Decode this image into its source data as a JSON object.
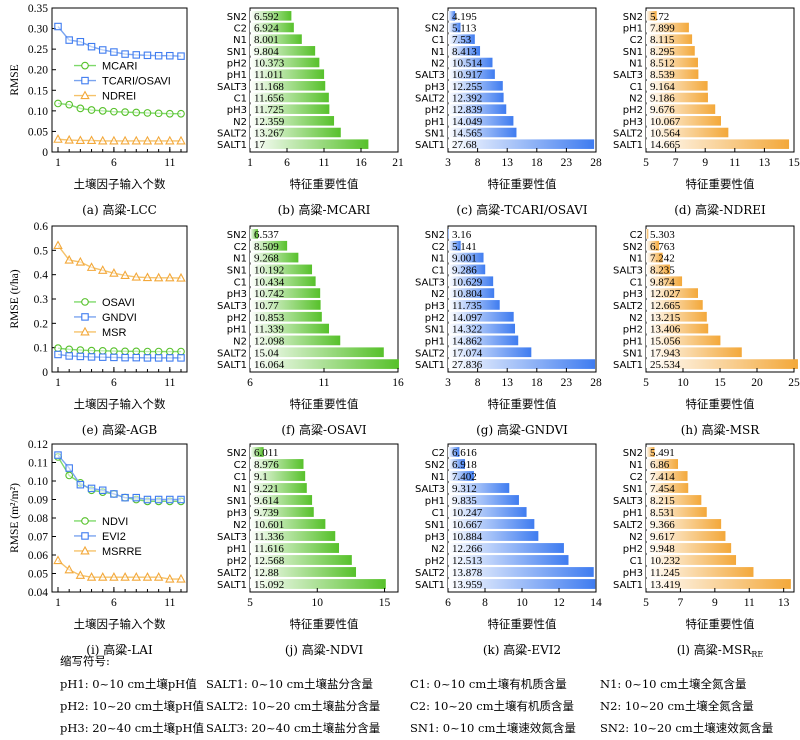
{
  "colors": {
    "green": "#57c12b",
    "blue": "#3f7cf0",
    "orange": "#f3a83a",
    "line_green": "#7ed96a",
    "line_blue": "#7aa4ef",
    "line_orange": "#f5c26a"
  },
  "chart_data": [
    {
      "id": "a",
      "type": "line",
      "caption": "(a) 高粱-LCC",
      "xlabel": "土壤因子输入个数",
      "ylabel": "RMSE",
      "ylim": [
        0,
        0.35
      ],
      "yticks": [
        0,
        0.05,
        0.1,
        0.15,
        0.2,
        0.25,
        0.3,
        0.35
      ],
      "ytick_labels": [
        "0",
        "0.05",
        "0.10",
        "0.15",
        "0.20",
        "0.25",
        "0.30",
        "0.35"
      ],
      "xlim": [
        1,
        12
      ],
      "xticks": [
        1,
        6,
        11
      ],
      "legend": [
        "MCARI",
        "TCARI/OSAVI",
        "NDREI"
      ],
      "legend_pos": "middle",
      "x": [
        1,
        2,
        3,
        4,
        5,
        6,
        7,
        8,
        9,
        10,
        11,
        12
      ],
      "series": [
        {
          "name": "MCARI",
          "color": "green",
          "marker": "circle",
          "values": [
            0.118,
            0.115,
            0.106,
            0.102,
            0.1,
            0.098,
            0.097,
            0.096,
            0.095,
            0.094,
            0.093,
            0.093
          ]
        },
        {
          "name": "TCARI/OSAVI",
          "color": "blue",
          "marker": "square",
          "values": [
            0.305,
            0.272,
            0.268,
            0.256,
            0.248,
            0.243,
            0.238,
            0.236,
            0.235,
            0.234,
            0.234,
            0.233
          ]
        },
        {
          "name": "NDREI",
          "color": "orange",
          "marker": "triangle",
          "values": [
            0.031,
            0.029,
            0.028,
            0.028,
            0.027,
            0.027,
            0.027,
            0.027,
            0.027,
            0.027,
            0.027,
            0.027
          ]
        }
      ]
    },
    {
      "id": "b",
      "type": "bar",
      "caption": "(b) 高粱-MCARI",
      "xlabel": "特征重要性值",
      "color": "green",
      "xlim": [
        1,
        21
      ],
      "xticks": [
        1,
        6,
        11,
        16,
        21
      ],
      "categories": [
        "SN2",
        "C2",
        "N1",
        "SN1",
        "pH2",
        "pH1",
        "SALT3",
        "C1",
        "pH3",
        "N2",
        "SALT2",
        "SALT1"
      ],
      "values": [
        6.592,
        6.924,
        8.001,
        9.804,
        10.373,
        11.011,
        11.168,
        11.656,
        11.725,
        12.359,
        13.267,
        17
      ],
      "value_labels": [
        "6.592",
        "6.924",
        "8.001",
        "9.804",
        "10.373",
        "11.011",
        "11.168",
        "11.656",
        "11.725",
        "12.359",
        "13.267",
        "17"
      ]
    },
    {
      "id": "c",
      "type": "bar",
      "caption": "(c) 高粱-TCARI/OSAVI",
      "xlabel": "特征重要性值",
      "color": "blue",
      "xlim": [
        3,
        28
      ],
      "xticks": [
        3,
        8,
        13,
        18,
        23,
        28
      ],
      "categories": [
        "C2",
        "SN2",
        "C1",
        "N1",
        "N2",
        "SALT3",
        "pH3",
        "SALT2",
        "pH2",
        "pH1",
        "SN1",
        "SALT1"
      ],
      "values": [
        4.195,
        5.113,
        7.53,
        8.413,
        10.514,
        10.917,
        12.255,
        12.392,
        12.839,
        14.049,
        14.565,
        27.68
      ],
      "value_labels": [
        "4.195",
        "5.113",
        "7.53",
        "8.413",
        "10.514",
        "10.917",
        "12.255",
        "12.392",
        "12.839",
        "14.049",
        "14.565",
        "27.68"
      ]
    },
    {
      "id": "d",
      "type": "bar",
      "caption": "(d) 高粱-NDREI",
      "xlabel": "特征重要性值",
      "color": "orange",
      "xlim": [
        5,
        15
      ],
      "xticks": [
        5,
        7,
        9,
        11,
        13,
        15
      ],
      "categories": [
        "SN2",
        "pH1",
        "C2",
        "SN1",
        "N1",
        "SALT3",
        "C1",
        "N2",
        "pH2",
        "pH3",
        "SALT2",
        "SALT1"
      ],
      "values": [
        5.72,
        7.899,
        8.115,
        8.295,
        8.512,
        8.539,
        9.164,
        9.186,
        9.676,
        10.067,
        10.564,
        14.665
      ],
      "value_labels": [
        "5.72",
        "7.899",
        "8.115",
        "8.295",
        "8.512",
        "8.539",
        "9.164",
        "9.186",
        "9.676",
        "10.067",
        "10.564",
        "14.665"
      ]
    },
    {
      "id": "e",
      "type": "line",
      "caption": "(e) 高粱-AGB",
      "xlabel": "土壤因子输入个数",
      "ylabel": "RMSE (t/ha)",
      "ylim": [
        0,
        0.6
      ],
      "yticks": [
        0,
        0.1,
        0.2,
        0.3,
        0.4,
        0.5,
        0.6
      ],
      "ytick_labels": [
        "0",
        "0.1",
        "0.2",
        "0.3",
        "0.4",
        "0.5",
        "0.6"
      ],
      "xlim": [
        1,
        12
      ],
      "xticks": [
        1,
        6,
        11
      ],
      "legend": [
        "OSAVI",
        "GNDVI",
        "MSR"
      ],
      "legend_pos": "lower-middle",
      "x": [
        1,
        2,
        3,
        4,
        5,
        6,
        7,
        8,
        9,
        10,
        11,
        12
      ],
      "series": [
        {
          "name": "OSAVI",
          "color": "green",
          "marker": "circle",
          "values": [
            0.098,
            0.093,
            0.09,
            0.088,
            0.087,
            0.086,
            0.085,
            0.085,
            0.084,
            0.084,
            0.084,
            0.084
          ]
        },
        {
          "name": "GNDVI",
          "color": "blue",
          "marker": "square",
          "values": [
            0.072,
            0.066,
            0.064,
            0.062,
            0.061,
            0.06,
            0.059,
            0.059,
            0.058,
            0.058,
            0.058,
            0.058
          ]
        },
        {
          "name": "MSR",
          "color": "orange",
          "marker": "triangle",
          "values": [
            0.52,
            0.46,
            0.452,
            0.43,
            0.418,
            0.406,
            0.397,
            0.39,
            0.388,
            0.387,
            0.387,
            0.386
          ]
        }
      ]
    },
    {
      "id": "f",
      "type": "bar",
      "caption": "(f) 高粱-OSAVI",
      "xlabel": "特征重要性值",
      "color": "green",
      "xlim": [
        6,
        16
      ],
      "xticks": [
        6,
        11,
        16
      ],
      "categories": [
        "SN2",
        "C2",
        "N1",
        "SN1",
        "C1",
        "pH3",
        "SALT3",
        "pH2",
        "pH1",
        "N2",
        "SALT2",
        "SALT1"
      ],
      "values": [
        6.537,
        8.509,
        9.268,
        10.192,
        10.434,
        10.742,
        10.77,
        10.853,
        11.339,
        12.098,
        15.04,
        16.064
      ],
      "value_labels": [
        "6.537",
        "8.509",
        "9.268",
        "10.192",
        "10.434",
        "10.742",
        "10.77",
        "10.853",
        "11.339",
        "12.098",
        "15.04",
        "16.064"
      ]
    },
    {
      "id": "g",
      "type": "bar",
      "caption": "(g) 高粱-GNDVI",
      "xlabel": "特征重要性值",
      "color": "blue",
      "xlim": [
        3,
        28
      ],
      "xticks": [
        3,
        8,
        13,
        18,
        23,
        28
      ],
      "categories": [
        "SN2",
        "C2",
        "N1",
        "C1",
        "SALT3",
        "N2",
        "pH3",
        "pH2",
        "SN1",
        "pH1",
        "SALT2",
        "SALT1"
      ],
      "values": [
        3.16,
        5.141,
        9.001,
        9.286,
        10.629,
        10.804,
        11.735,
        14.097,
        14.322,
        14.862,
        17.074,
        27.836
      ],
      "value_labels": [
        "3.16",
        "5.141",
        "9.001",
        "9.286",
        "10.629",
        "10.804",
        "11.735",
        "14.097",
        "14.322",
        "14.862",
        "17.074",
        "27.836"
      ]
    },
    {
      "id": "h",
      "type": "bar",
      "caption": "(h) 高粱-MSR",
      "xlabel": "特征重要性值",
      "color": "orange",
      "xlim": [
        5,
        25
      ],
      "xticks": [
        5,
        10,
        15,
        20,
        25
      ],
      "categories": [
        "C2",
        "SN2",
        "N1",
        "SALT3",
        "C1",
        "pH3",
        "SALT2",
        "N2",
        "pH2",
        "pH1",
        "SN1",
        "SALT1"
      ],
      "values": [
        5.303,
        6.763,
        7.242,
        8.235,
        9.874,
        12.027,
        12.665,
        13.215,
        13.406,
        15.056,
        17.943,
        25.534
      ],
      "value_labels": [
        "5.303",
        "6.763",
        "7.242",
        "8.235",
        "9.874",
        "12.027",
        "12.665",
        "13.215",
        "13.406",
        "15.056",
        "17.943",
        "25.534"
      ]
    },
    {
      "id": "i",
      "type": "line",
      "caption": "(i) 高粱-LAI",
      "xlabel": "土壤因子输入个数",
      "ylabel": "RMSE (m²/m²)",
      "ylim": [
        0.04,
        0.12
      ],
      "yticks": [
        0.04,
        0.05,
        0.06,
        0.07,
        0.08,
        0.09,
        0.1,
        0.11,
        0.12
      ],
      "ytick_labels": [
        "0.04",
        "0.05",
        "0.06",
        "0.07",
        "0.08",
        "0.09",
        "0.10",
        "0.11",
        "0.12"
      ],
      "xlim": [
        1,
        12
      ],
      "xticks": [
        1,
        6,
        11
      ],
      "legend": [
        "NDVI",
        "EVI2",
        "MSRRE"
      ],
      "legend_pos": "lower-middle",
      "x": [
        1,
        2,
        3,
        4,
        5,
        6,
        7,
        8,
        9,
        10,
        11,
        12
      ],
      "series": [
        {
          "name": "NDVI",
          "color": "green",
          "marker": "circle",
          "values": [
            0.113,
            0.103,
            0.099,
            0.095,
            0.094,
            0.093,
            0.091,
            0.09,
            0.089,
            0.089,
            0.089,
            0.089
          ]
        },
        {
          "name": "EVI2",
          "color": "blue",
          "marker": "square",
          "values": [
            0.114,
            0.107,
            0.098,
            0.096,
            0.095,
            0.093,
            0.091,
            0.091,
            0.09,
            0.09,
            0.09,
            0.09
          ]
        },
        {
          "name": "MSRRE",
          "color": "orange",
          "marker": "triangle",
          "values": [
            0.057,
            0.052,
            0.049,
            0.048,
            0.048,
            0.048,
            0.048,
            0.048,
            0.048,
            0.048,
            0.047,
            0.047
          ]
        }
      ]
    },
    {
      "id": "j",
      "type": "bar",
      "caption": "(j) 高粱-NDVI",
      "xlabel": "特征重要性值",
      "color": "green",
      "xlim": [
        5,
        16
      ],
      "xticks": [
        5,
        10,
        15
      ],
      "categories": [
        "SN2",
        "C2",
        "C1",
        "N1",
        "SN1",
        "pH3",
        "N2",
        "SALT3",
        "pH1",
        "pH2",
        "SALT2",
        "SALT1"
      ],
      "values": [
        6.011,
        8.976,
        9.1,
        9.221,
        9.614,
        9.739,
        10.601,
        11.336,
        11.616,
        12.568,
        12.88,
        15.092
      ],
      "value_labels": [
        "6.011",
        "8.976",
        "9.1",
        "9.221",
        "9.614",
        "9.739",
        "10.601",
        "11.336",
        "11.616",
        "12.568",
        "12.88",
        "15.092"
      ]
    },
    {
      "id": "k",
      "type": "bar",
      "caption": "(k) 高粱-EVI2",
      "xlabel": "特征重要性值",
      "color": "blue",
      "xlim": [
        6,
        14
      ],
      "xticks": [
        6,
        8,
        10,
        12,
        14
      ],
      "categories": [
        "C2",
        "SN2",
        "N1",
        "SALT3",
        "pH1",
        "C1",
        "SN1",
        "pH3",
        "N2",
        "pH2",
        "SALT2",
        "SALT1"
      ],
      "values": [
        6.616,
        6.918,
        7.402,
        9.312,
        9.835,
        10.247,
        10.667,
        10.884,
        12.266,
        12.513,
        13.878,
        13.959
      ],
      "value_labels": [
        "6.616",
        "6.918",
        "7.402",
        "9.312",
        "9.835",
        "10.247",
        "10.667",
        "10.884",
        "12.266",
        "12.513",
        "13.878",
        "13.959"
      ]
    },
    {
      "id": "l",
      "type": "bar",
      "caption": "(l) 高粱-MSR",
      "caption_sub": "RE",
      "xlabel": "特征重要性值",
      "color": "orange",
      "xlim": [
        5,
        13.6
      ],
      "xticks": [
        5,
        7,
        9,
        11,
        13
      ],
      "categories": [
        "SN2",
        "N1",
        "C2",
        "SN1",
        "SALT3",
        "pH1",
        "SALT2",
        "N2",
        "pH2",
        "C1",
        "pH3",
        "SALT1"
      ],
      "values": [
        5.491,
        6.86,
        7.414,
        7.454,
        8.215,
        8.531,
        9.366,
        9.617,
        9.948,
        10.232,
        11.245,
        13.419
      ],
      "value_labels": [
        "5.491",
        "6.86",
        "7.414",
        "7.454",
        "8.215",
        "8.531",
        "9.366",
        "9.617",
        "9.948",
        "10.232",
        "11.245",
        "13.419"
      ]
    }
  ],
  "footnote": {
    "title": "缩写符号:",
    "rows": [
      [
        "pH1: 0~10 cm土壤pH值",
        "SALT1: 0~10 cm土壤盐分含量",
        "C1: 0~10 cm土壤有机质含量",
        "N1: 0~10 cm土壤全氮含量"
      ],
      [
        "pH2: 10~20 cm土壤pH值",
        "SALT2: 10~20 cm土壤盐分含量",
        "C2: 10~20 cm土壤有机质含量",
        "N2: 10~20 cm土壤全氮含量"
      ],
      [
        "pH3: 20~40 cm土壤pH值",
        "SALT3: 20~40 cm土壤盐分含量",
        "SN1: 0~10 cm土壤速效氮含量",
        "SN2: 10~20 cm土壤速效氮含量"
      ]
    ]
  }
}
